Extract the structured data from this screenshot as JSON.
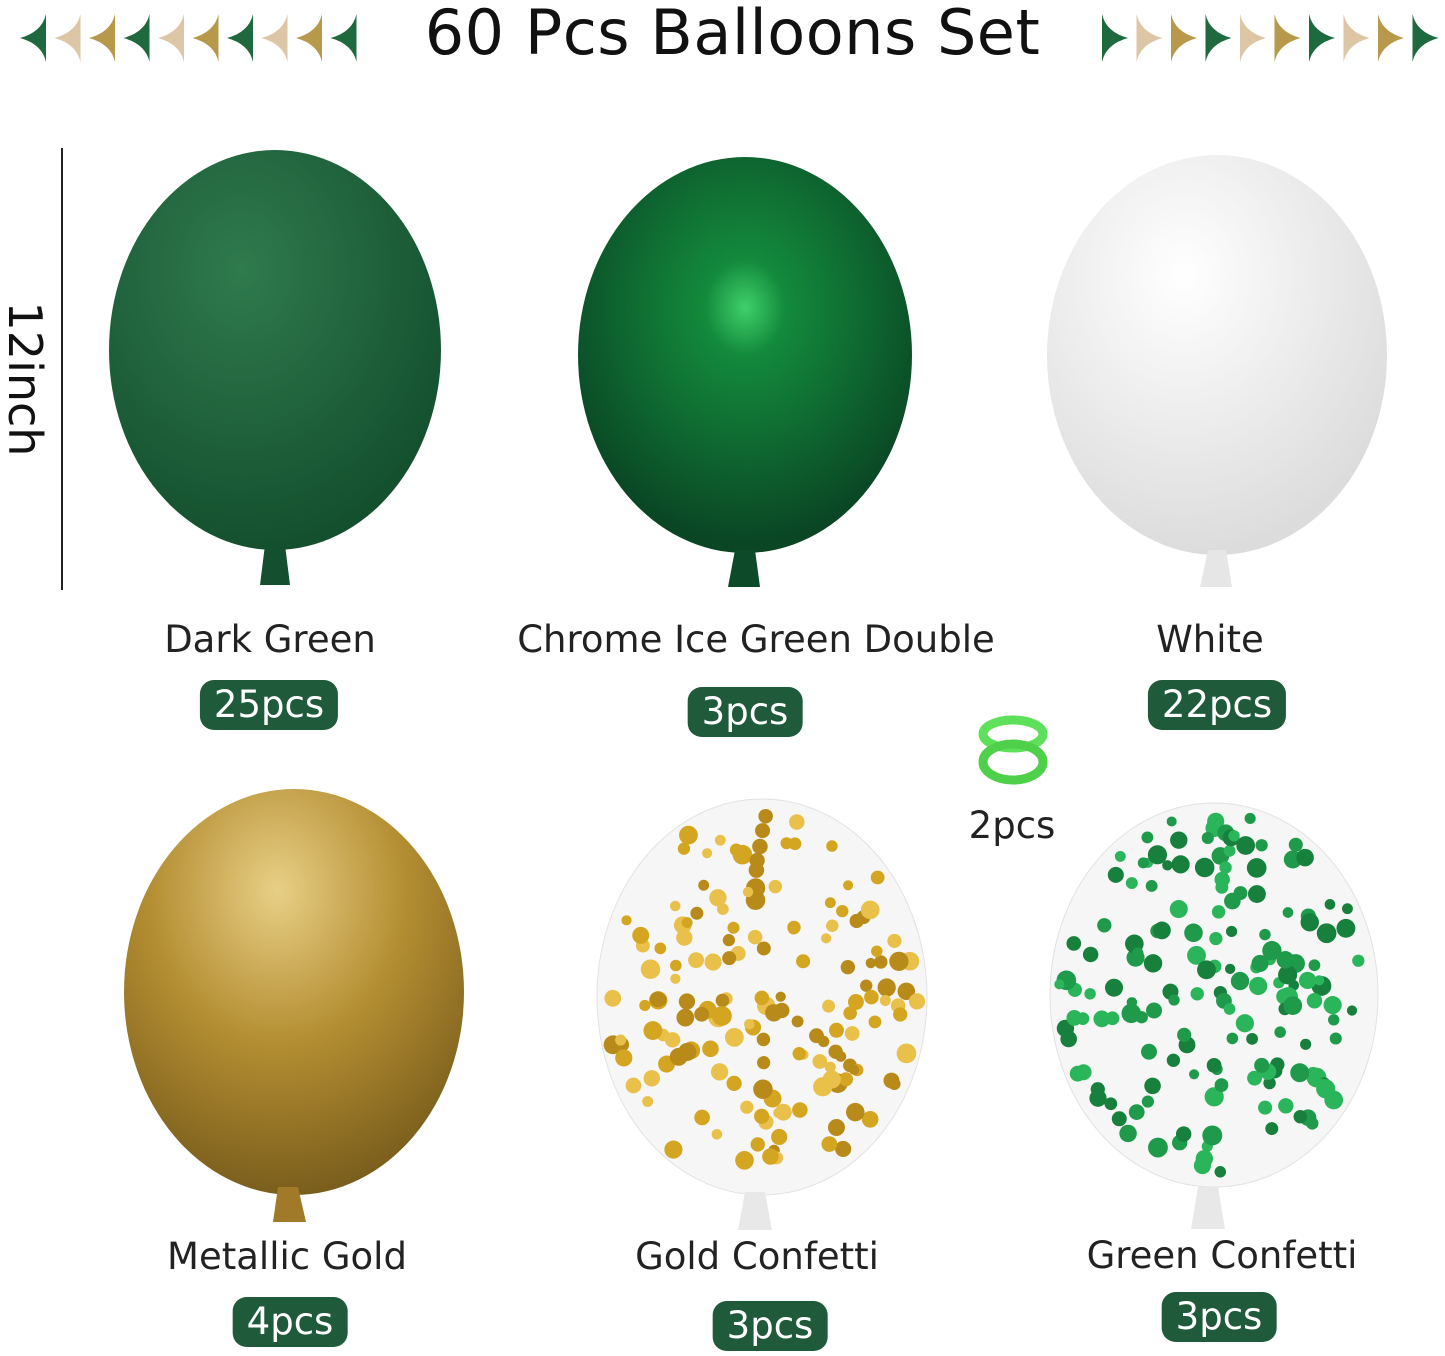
{
  "title": "60 Pcs Balloons Set",
  "size_label": "12inch",
  "colors": {
    "badge": "#1f5b3a",
    "flag_green": "#1e6a3e",
    "flag_beige": "#dcc6a6",
    "flag_gold": "#b8984a"
  },
  "balloons": [
    {
      "name": "Dark Green",
      "count": "25pcs"
    },
    {
      "name": "Chrome Ice Green Double",
      "count": "3pcs"
    },
    {
      "name": "White",
      "count": "22pcs"
    },
    {
      "name": "Metallic Gold",
      "count": "4pcs"
    },
    {
      "name": "Gold Confetti",
      "count": "3pcs"
    },
    {
      "name": "Green Confetti",
      "count": "3pcs"
    }
  ],
  "ring": {
    "icon": "balloon-ring-icon",
    "count": "2pcs"
  }
}
